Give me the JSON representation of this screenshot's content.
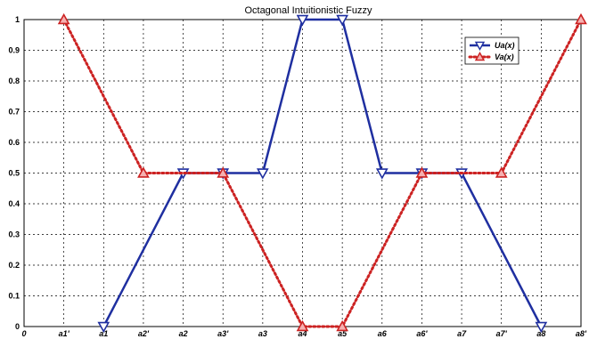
{
  "chart_data": {
    "type": "line",
    "title": "Octagonal Intuitionistic Fuzzy",
    "xlabel": "",
    "ylabel": "",
    "categories": [
      "0",
      "a1'",
      "a1",
      "a2'",
      "a2",
      "a3'",
      "a3",
      "a4",
      "a5",
      "a6",
      "a6'",
      "a7",
      "a7'",
      "a8",
      "a8'"
    ],
    "ylim": [
      0,
      1
    ],
    "yticks": [
      "0",
      "0.1",
      "0.2",
      "0.3",
      "0.4",
      "0.5",
      "0.6",
      "0.7",
      "0.8",
      "0.9",
      "1"
    ],
    "grid": true,
    "legend_position": "top-right",
    "series": [
      {
        "name": "Ua(x)",
        "color": "#1f2fa0",
        "line_style": "solid",
        "marker": "triangle-down",
        "points": [
          {
            "x": "a1",
            "y": 0
          },
          {
            "x": "a2",
            "y": 0.5
          },
          {
            "x": "a3'",
            "y": 0.5
          },
          {
            "x": "a3",
            "y": 0.5
          },
          {
            "x": "a4",
            "y": 1
          },
          {
            "x": "a5",
            "y": 1
          },
          {
            "x": "a6",
            "y": 0.5
          },
          {
            "x": "a6'",
            "y": 0.5
          },
          {
            "x": "a7",
            "y": 0.5
          },
          {
            "x": "a8",
            "y": 0
          }
        ]
      },
      {
        "name": "Va(x)",
        "color": "#cc2222",
        "line_style": "dotted",
        "marker": "triangle-up",
        "points": [
          {
            "x": "a1'",
            "y": 1
          },
          {
            "x": "a2'",
            "y": 0.5
          },
          {
            "x": "a3'",
            "y": 0.5
          },
          {
            "x": "a4",
            "y": 0
          },
          {
            "x": "a5",
            "y": 0
          },
          {
            "x": "a6'",
            "y": 0.5
          },
          {
            "x": "a7'",
            "y": 0.5
          },
          {
            "x": "a8'",
            "y": 1
          }
        ]
      }
    ]
  }
}
